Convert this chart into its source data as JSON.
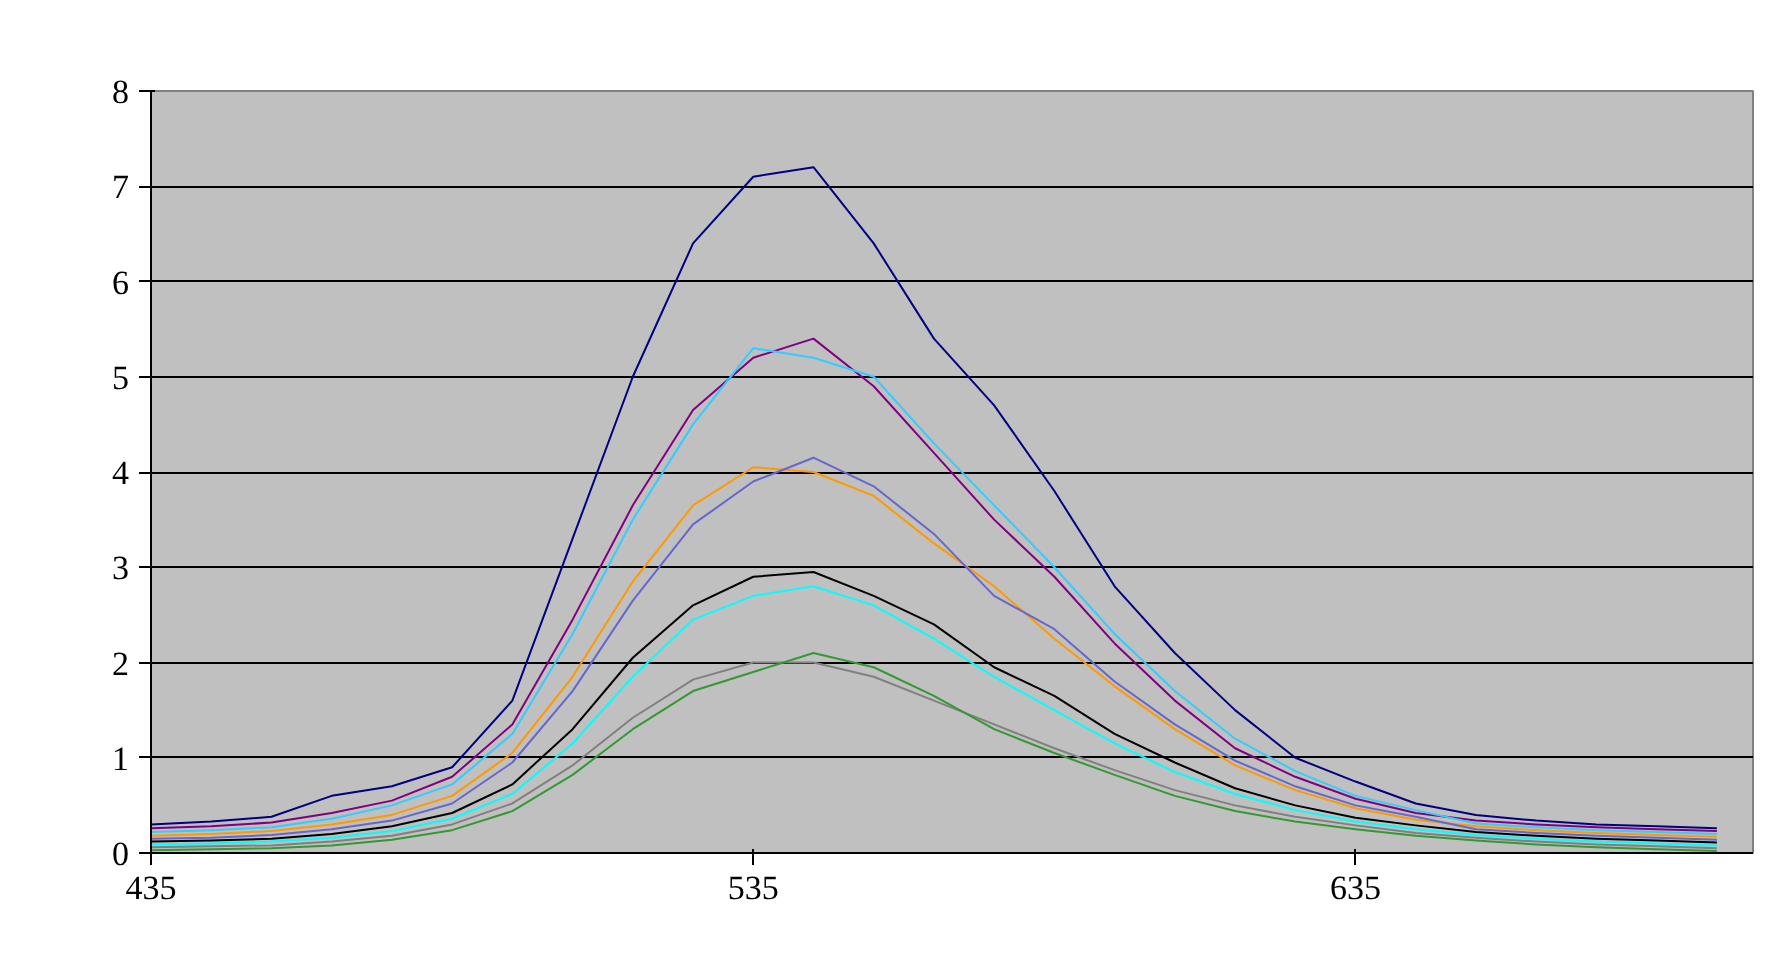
{
  "chart_data": {
    "type": "line",
    "x": [
      435,
      445,
      455,
      465,
      475,
      485,
      495,
      505,
      515,
      525,
      535,
      545,
      555,
      565,
      575,
      585,
      595,
      605,
      615,
      625,
      635,
      645,
      655,
      665,
      675,
      685,
      695
    ],
    "series": [
      {
        "color": "#000080",
        "values": [
          0.3,
          0.33,
          0.38,
          0.6,
          0.7,
          0.9,
          1.6,
          3.3,
          5.0,
          6.4,
          7.1,
          7.2,
          6.4,
          5.4,
          4.7,
          3.8,
          2.8,
          2.1,
          1.5,
          1.0,
          0.75,
          0.52,
          0.4,
          0.34,
          0.3,
          0.28,
          0.26
        ]
      },
      {
        "color": "#800080",
        "values": [
          0.26,
          0.28,
          0.32,
          0.42,
          0.55,
          0.8,
          1.35,
          2.45,
          3.65,
          4.65,
          5.2,
          5.4,
          4.9,
          4.2,
          3.5,
          2.9,
          2.2,
          1.6,
          1.1,
          0.8,
          0.57,
          0.42,
          0.34,
          0.3,
          0.27,
          0.25,
          0.23
        ]
      },
      {
        "color": "#33ccff",
        "values": [
          0.22,
          0.24,
          0.27,
          0.36,
          0.5,
          0.72,
          1.25,
          2.3,
          3.5,
          4.5,
          5.3,
          5.2,
          5.0,
          4.3,
          3.65,
          3.0,
          2.3,
          1.7,
          1.2,
          0.86,
          0.6,
          0.45,
          0.31,
          0.27,
          0.24,
          0.22,
          0.2
        ]
      },
      {
        "color": "#ff9900",
        "values": [
          0.18,
          0.2,
          0.23,
          0.3,
          0.4,
          0.6,
          1.05,
          1.85,
          2.85,
          3.65,
          4.05,
          4.0,
          3.75,
          3.25,
          2.8,
          2.25,
          1.75,
          1.3,
          0.92,
          0.66,
          0.47,
          0.35,
          0.28,
          0.24,
          0.21,
          0.19,
          0.17
        ]
      },
      {
        "color": "#6666cc",
        "values": [
          0.15,
          0.16,
          0.19,
          0.25,
          0.34,
          0.52,
          0.95,
          1.7,
          2.65,
          3.45,
          3.9,
          4.15,
          3.85,
          3.35,
          2.7,
          2.35,
          1.8,
          1.35,
          0.97,
          0.7,
          0.5,
          0.38,
          0.25,
          0.21,
          0.18,
          0.16,
          0.14
        ]
      },
      {
        "color": "#000000",
        "values": [
          0.12,
          0.13,
          0.15,
          0.2,
          0.28,
          0.42,
          0.72,
          1.3,
          2.05,
          2.6,
          2.9,
          2.95,
          2.7,
          2.4,
          1.95,
          1.65,
          1.25,
          0.95,
          0.68,
          0.5,
          0.37,
          0.29,
          0.22,
          0.18,
          0.15,
          0.13,
          0.11
        ]
      },
      {
        "color": "#00ffff",
        "values": [
          0.09,
          0.1,
          0.12,
          0.16,
          0.23,
          0.36,
          0.62,
          1.15,
          1.85,
          2.45,
          2.7,
          2.8,
          2.6,
          2.25,
          1.85,
          1.5,
          1.15,
          0.85,
          0.62,
          0.45,
          0.33,
          0.25,
          0.19,
          0.15,
          0.12,
          0.1,
          0.08
        ]
      },
      {
        "color": "#808080",
        "values": [
          0.06,
          0.07,
          0.08,
          0.12,
          0.18,
          0.3,
          0.52,
          0.92,
          1.42,
          1.82,
          2.0,
          2.0,
          1.85,
          1.6,
          1.35,
          1.1,
          0.87,
          0.66,
          0.5,
          0.38,
          0.29,
          0.21,
          0.16,
          0.12,
          0.09,
          0.07,
          0.05
        ]
      },
      {
        "color": "#339933",
        "values": [
          0.03,
          0.04,
          0.05,
          0.08,
          0.14,
          0.24,
          0.44,
          0.82,
          1.3,
          1.7,
          1.9,
          2.1,
          1.95,
          1.65,
          1.3,
          1.05,
          0.82,
          0.6,
          0.44,
          0.33,
          0.25,
          0.18,
          0.13,
          0.09,
          0.06,
          0.04,
          0.02
        ]
      }
    ],
    "xlim": [
      435,
      701
    ],
    "ylim": [
      0,
      8
    ],
    "xticks": [
      435,
      535,
      635
    ],
    "yticks": [
      0,
      1,
      2,
      3,
      4,
      5,
      6,
      7,
      8
    ],
    "grid": "y"
  }
}
